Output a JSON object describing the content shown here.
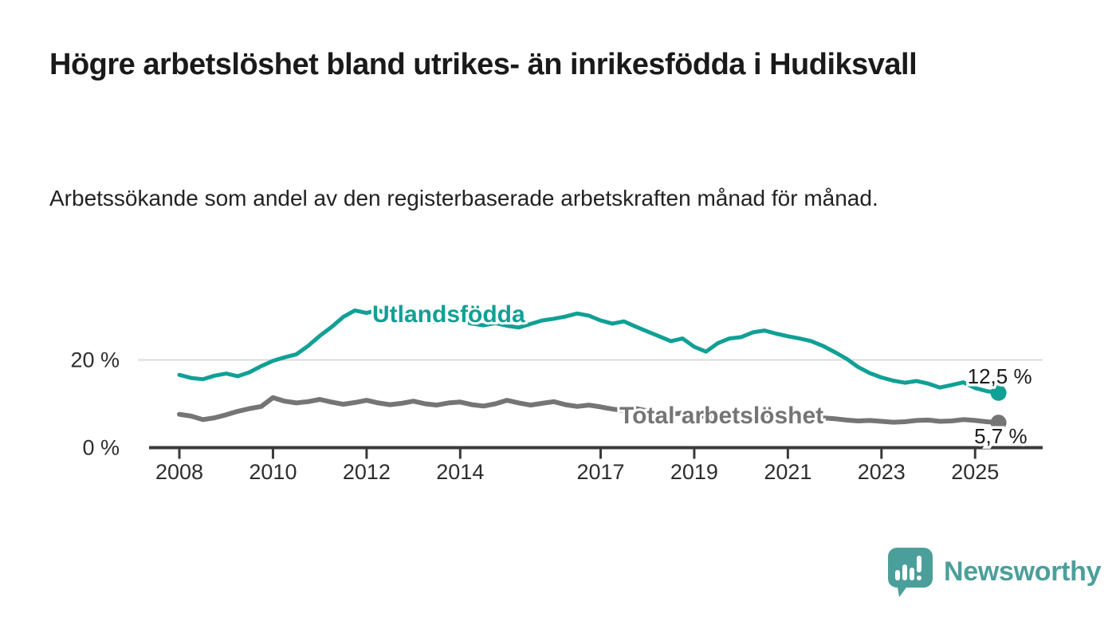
{
  "header": {
    "title": "Högre arbetslöshet bland utrikes- än inrikesfödda i Hudiksvall",
    "subtitle": "Arbetssökande som andel av den registerbaserade arbetskraften månad för månad."
  },
  "chart_data": {
    "type": "line",
    "unit": "%",
    "x_start": 2008,
    "x_end": 2025.5,
    "points_per_year": 4,
    "x_ticks": [
      2008,
      2010,
      2012,
      2014,
      2017,
      2019,
      2021,
      2023,
      2025
    ],
    "y_ticks": [
      {
        "value": 0,
        "label": "0 %"
      },
      {
        "value": 20,
        "label": "20 %"
      }
    ],
    "ylim": [
      0,
      33
    ],
    "gridlines": [
      20
    ],
    "grid_color": "#d9d9d9",
    "axis_color": "#3a3a3a",
    "tick_label_color": "#2e2e2e",
    "value_label_color": "#1a1a1a",
    "legend_position": "inline-labels",
    "series": [
      {
        "name": "Utlandsfödda",
        "color": "#10a095",
        "end_label": "12,5 %",
        "end_value": 12.5,
        "values": [
          16.6,
          15.9,
          15.6,
          16.4,
          16.9,
          16.3,
          17.2,
          18.6,
          19.8,
          20.6,
          21.3,
          23.2,
          25.5,
          27.5,
          29.8,
          31.3,
          30.7,
          31.4,
          30.0,
          29.5,
          29.6,
          29.0,
          28.6,
          29.2,
          28.9,
          28.3,
          27.9,
          28.4,
          27.8,
          27.4,
          28.2,
          29.0,
          29.4,
          29.9,
          30.6,
          30.1,
          29.0,
          28.3,
          28.8,
          27.6,
          26.5,
          25.4,
          24.3,
          24.9,
          23.0,
          21.9,
          23.8,
          24.9,
          25.2,
          26.3,
          26.7,
          26.0,
          25.4,
          24.9,
          24.3,
          23.2,
          21.8,
          20.3,
          18.4,
          17.0,
          16.0,
          15.3,
          14.8,
          15.2,
          14.6,
          13.7,
          14.3,
          14.9,
          13.6,
          12.9,
          12.5
        ]
      },
      {
        "name": "Total arbetslöshet",
        "color": "#757575",
        "end_label": "5,7 %",
        "end_value": 5.7,
        "values": [
          7.6,
          7.2,
          6.4,
          6.8,
          7.5,
          8.3,
          8.9,
          9.4,
          11.4,
          10.6,
          10.2,
          10.5,
          11.0,
          10.4,
          9.9,
          10.3,
          10.8,
          10.2,
          9.8,
          10.1,
          10.6,
          10.0,
          9.7,
          10.2,
          10.4,
          9.8,
          9.5,
          10.0,
          10.8,
          10.2,
          9.7,
          10.1,
          10.5,
          9.8,
          9.4,
          9.7,
          9.3,
          8.8,
          8.5,
          8.9,
          8.4,
          7.9,
          7.6,
          7.9,
          7.5,
          7.1,
          7.3,
          7.6,
          7.4,
          7.8,
          7.6,
          7.3,
          7.2,
          7.0,
          6.9,
          6.8,
          6.6,
          6.3,
          6.1,
          6.2,
          6.0,
          5.8,
          5.9,
          6.2,
          6.3,
          6.0,
          6.1,
          6.4,
          6.2,
          5.9,
          5.7
        ]
      }
    ]
  },
  "footer": {
    "brand": "Newsworthy",
    "brand_color": "#4b9f9b"
  }
}
